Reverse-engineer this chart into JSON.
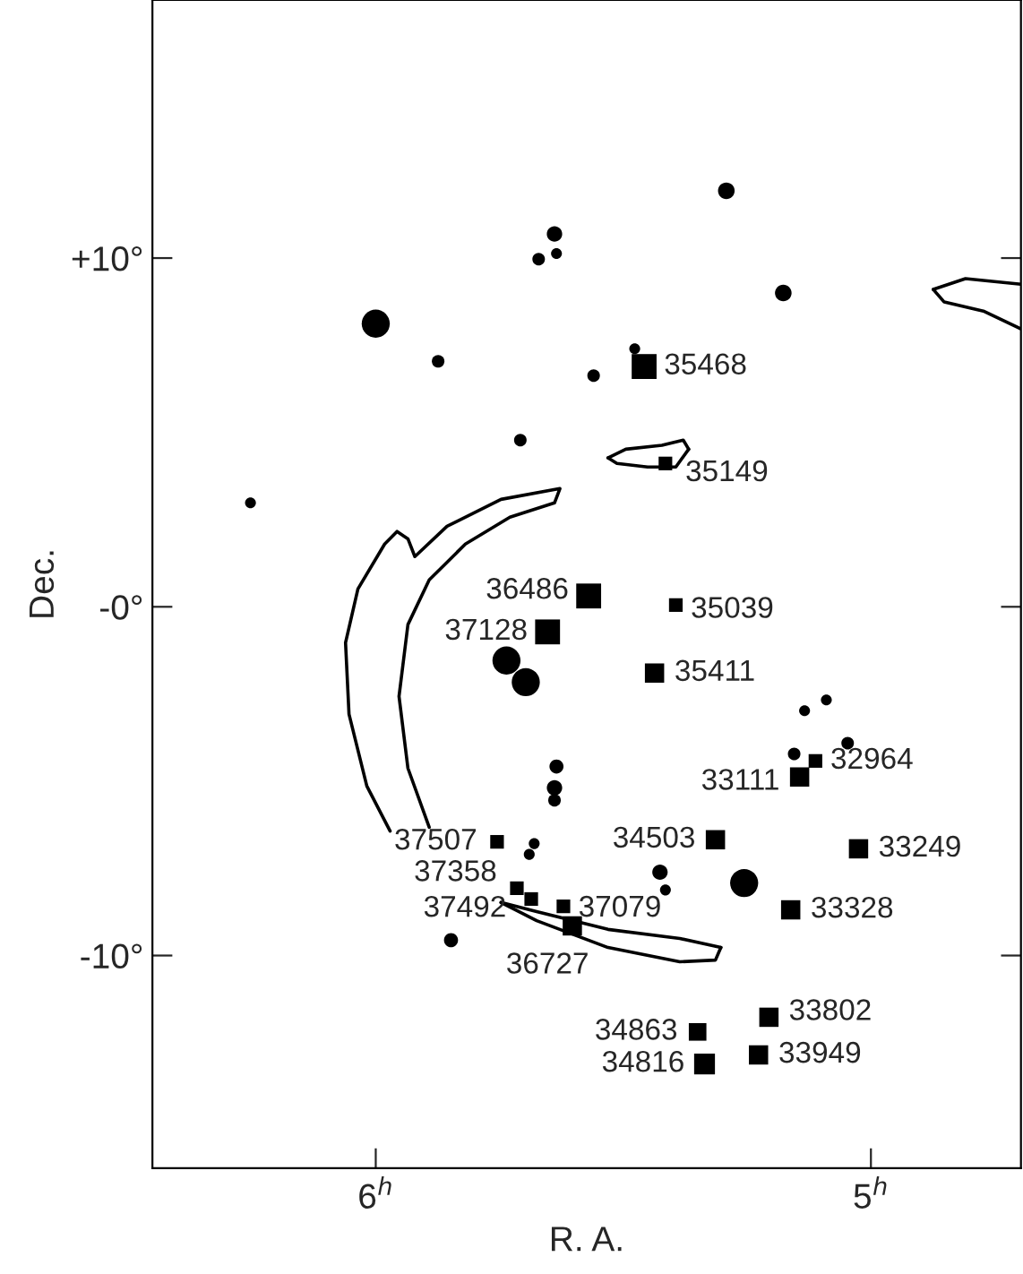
{
  "chart_data": {
    "type": "bubble",
    "xlabel": "R. A.",
    "ylabel": "Dec.",
    "xlim": [
      6.451,
      4.697
    ],
    "ylim": [
      -16.1,
      17.4
    ],
    "xticks": [
      {
        "value": 6,
        "label": "6$^{h}$"
      },
      {
        "value": 5,
        "label": "5$^{h}$"
      }
    ],
    "yticks": [
      {
        "value": 10,
        "label": "+10°"
      },
      {
        "value": 0,
        "label": "-0°"
      },
      {
        "value": -10,
        "label": "-10°"
      }
    ],
    "grid": false,
    "legend": false,
    "series": [
      {
        "marker": "square",
        "color": "#000000",
        "x": [
          5.458,
          5.415,
          5.57,
          5.653,
          5.394,
          5.437,
          5.144,
          5.112,
          5.025,
          5.314,
          5.755,
          5.715,
          5.686,
          5.621,
          5.603,
          5.162,
          5.206,
          5.35,
          5.227,
          5.336
        ],
        "values": [
          6.89,
          4.11,
          0.31,
          -0.72,
          0.05,
          -1.9,
          -4.88,
          -4.42,
          -6.94,
          -6.68,
          -6.74,
          -8.07,
          -8.38,
          -8.59,
          -9.15,
          -8.69,
          -11.77,
          -12.19,
          -12.85,
          -13.11
        ],
        "sizes": [
          1,
          0.3,
          1,
          1,
          0.3,
          0.6,
          0.6,
          0.3,
          0.6,
          0.6,
          0.3,
          0.3,
          0.3,
          0.3,
          0.6,
          0.6,
          0.6,
          0.5,
          0.6,
          0.7
        ]
      },
      {
        "marker": "circle",
        "color": "#000000",
        "x": [
          6.0,
          5.736,
          5.697,
          5.256,
          5.292,
          5.177,
          5.639,
          5.671,
          5.635,
          5.874,
          5.56,
          5.708,
          6.253,
          5.635,
          5.639,
          5.639,
          5.155,
          5.134,
          5.09,
          5.047,
          5.426,
          5.415,
          5.69,
          5.68,
          5.848,
          5.477
        ],
        "values": [
          8.12,
          -1.54,
          -2.16,
          -7.92,
          11.93,
          9.0,
          10.69,
          9.97,
          10.13,
          7.04,
          6.63,
          4.78,
          2.98,
          -4.58,
          -5.19,
          -5.55,
          -4.22,
          -2.98,
          -2.67,
          -3.91,
          -7.61,
          -8.12,
          -7.1,
          -6.79,
          -9.56,
          7.4
        ],
        "sizes": [
          1,
          1,
          1,
          1,
          0.35,
          0.35,
          0.3,
          0.2,
          0.15,
          0.2,
          0.2,
          0.2,
          0.15,
          0.25,
          0.3,
          0.2,
          0.2,
          0.15,
          0.15,
          0.2,
          0.3,
          0.15,
          0.15,
          0.15,
          0.25,
          0.15
        ]
      },
      {
        "type": "line",
        "color": "#000000",
        "x": [
          5.971,
          6.018,
          6.054,
          6.061,
          6.036,
          5.982,
          5.957,
          5.935,
          5.921,
          5.856,
          5.747,
          5.628,
          5.639,
          5.729,
          5.819,
          5.892,
          5.935,
          5.953,
          5.935,
          5.892
        ],
        "values": [
          -6.43,
          -5.14,
          -3.08,
          -1.03,
          0.51,
          1.8,
          2.16,
          1.95,
          1.44,
          2.31,
          3.08,
          3.39,
          2.98,
          2.57,
          1.8,
          0.77,
          -0.51,
          -2.57,
          -4.63,
          -6.32
        ]
      },
      {
        "type": "line",
        "color": "#000000",
        "x": [
          5.747,
          5.675,
          5.531,
          5.386,
          5.303
        ],
        "values": [
          -8.48,
          -8.74,
          -9.25,
          -9.51,
          -9.77
        ]
      },
      {
        "type": "line",
        "color": "#000000",
        "x": [
          5.303,
          5.314,
          5.386,
          5.531,
          5.675,
          5.747
        ],
        "values": [
          -9.77,
          -10.13,
          -10.18,
          -9.77,
          -9.0,
          -8.48
        ]
      },
      {
        "type": "line",
        "color": "#000000",
        "x": [
          5.531,
          5.495,
          5.422,
          5.379,
          5.368
        ],
        "values": [
          4.27,
          4.52,
          4.63,
          4.78,
          4.52
        ]
      },
      {
        "type": "line",
        "color": "#000000",
        "x": [
          5.368,
          5.394,
          5.451,
          5.513,
          5.531
        ],
        "values": [
          4.52,
          4.01,
          4.01,
          4.11,
          4.27
        ]
      },
      {
        "type": "line",
        "color": "#000000",
        "x": [
          4.697,
          4.809,
          4.874
        ],
        "values": [
          9.25,
          9.41,
          9.1
        ]
      },
      {
        "type": "line",
        "color": "#000000",
        "x": [
          4.874,
          4.852,
          4.773,
          4.697
        ],
        "values": [
          9.1,
          8.74,
          8.48,
          7.97
        ]
      }
    ],
    "annotations": [
      {
        "text": "35468",
        "x": 5.458,
        "y": 6.89
      },
      {
        "text": "35149",
        "x": 5.415,
        "y": 4.11
      },
      {
        "text": "36486",
        "x": 5.57,
        "y": 0.31
      },
      {
        "text": "37128",
        "x": 5.653,
        "y": -0.72
      },
      {
        "text": "35039",
        "x": 5.394,
        "y": 0.05
      },
      {
        "text": "35411",
        "x": 5.437,
        "y": -1.9
      },
      {
        "text": "33111",
        "x": 5.144,
        "y": -4.88
      },
      {
        "text": "32964",
        "x": 5.112,
        "y": -4.42
      },
      {
        "text": "33249",
        "x": 5.025,
        "y": -6.94
      },
      {
        "text": "34503",
        "x": 5.314,
        "y": -6.68
      },
      {
        "text": "37507",
        "x": 5.755,
        "y": -6.74
      },
      {
        "text": "37358",
        "x": 5.715,
        "y": -8.07
      },
      {
        "text": "37492",
        "x": 5.686,
        "y": -8.38
      },
      {
        "text": "37079",
        "x": 5.621,
        "y": -8.59
      },
      {
        "text": "36727",
        "x": 5.603,
        "y": -9.15
      },
      {
        "text": "33328",
        "x": 5.162,
        "y": -8.69
      },
      {
        "text": "33802",
        "x": 5.206,
        "y": -11.77
      },
      {
        "text": "34863",
        "x": 5.35,
        "y": -12.19
      },
      {
        "text": "33949",
        "x": 5.227,
        "y": -12.85
      },
      {
        "text": "34816",
        "x": 5.336,
        "y": -13.11
      }
    ]
  }
}
